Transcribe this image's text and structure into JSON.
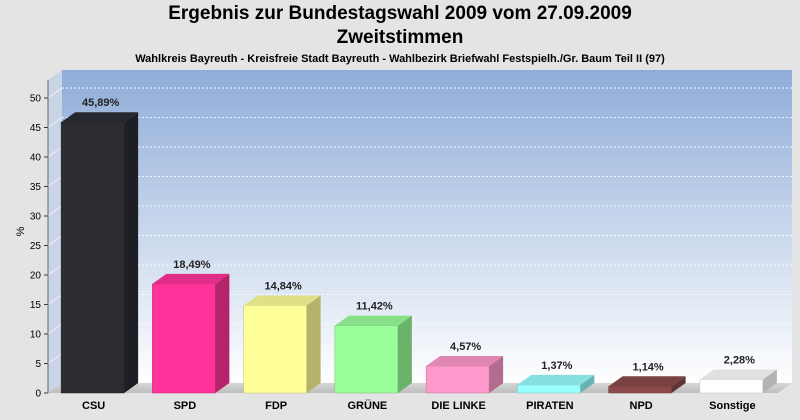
{
  "chart_data": {
    "type": "bar",
    "title": "Ergebnis zur Bundestagswahl 2009 vom 27.09.2009",
    "title_line2": "Zweitstimmen",
    "subtitle": "Wahlkreis Bayreuth - Kreisfreie Stadt Bayreuth - Wahlbezirk Briefwahl Festspielh./Gr. Baum Teil II (97)",
    "ylabel": "%",
    "xlabel": "",
    "ylim": [
      0,
      50
    ],
    "yticks": [
      0,
      5,
      10,
      15,
      20,
      25,
      30,
      35,
      40,
      45,
      50
    ],
    "grid": true,
    "categories": [
      "CSU",
      "SPD",
      "FDP",
      "GRÜNE",
      "DIE LINKE",
      "PIRATEN",
      "NPD",
      "Sonstige"
    ],
    "values": [
      45.89,
      18.49,
      14.84,
      11.42,
      4.57,
      1.37,
      1.14,
      2.28
    ],
    "value_labels": [
      "45,89%",
      "18,49%",
      "14,84%",
      "11,42%",
      "4,57%",
      "1,37%",
      "1,14%",
      "2,28%"
    ],
    "colors": [
      "#2b2d33",
      "#ff3399",
      "#ffff99",
      "#99ff99",
      "#ff99cc",
      "#99ffff",
      "#8b4a4a",
      "#ffffff"
    ]
  }
}
